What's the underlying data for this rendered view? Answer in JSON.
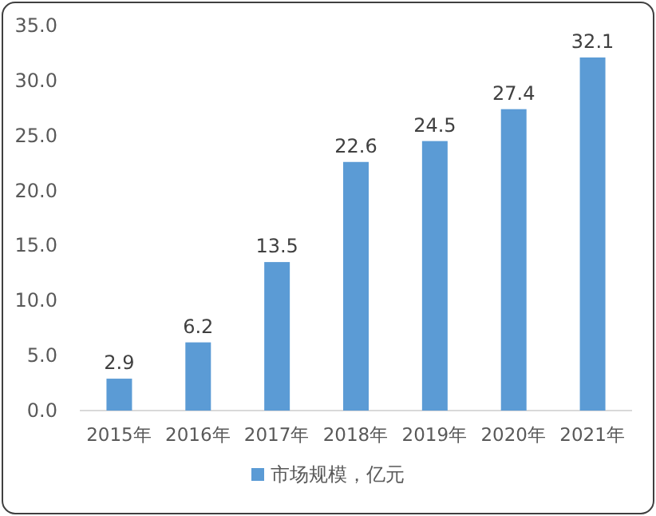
{
  "chart_data": {
    "type": "bar",
    "categories": [
      "2015年",
      "2016年",
      "2017年",
      "2018年",
      "2019年",
      "2020年",
      "2021年"
    ],
    "series": [
      {
        "name": "市场规模，亿元",
        "color": "#5b9bd5",
        "values": [
          2.9,
          6.2,
          13.5,
          22.6,
          24.5,
          27.4,
          32.1
        ]
      }
    ],
    "ylim": [
      0,
      35
    ],
    "yticks": [
      {
        "value": 0,
        "label": "0.0"
      },
      {
        "value": 5,
        "label": "5.0"
      },
      {
        "value": 10,
        "label": "10.0"
      },
      {
        "value": 15,
        "label": "15.0"
      },
      {
        "value": 20,
        "label": "20.0"
      },
      {
        "value": 25,
        "label": "25.0"
      },
      {
        "value": 30,
        "label": "30.0"
      },
      {
        "value": 35,
        "label": "35.0"
      }
    ],
    "data_labels": true,
    "legend": "bottom"
  }
}
